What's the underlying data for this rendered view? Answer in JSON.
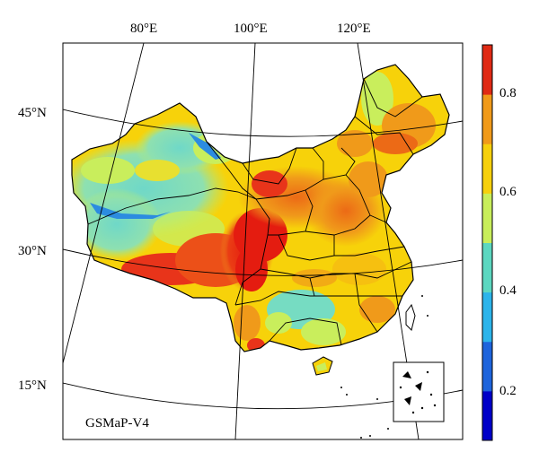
{
  "map": {
    "product_label": "GSMaP-V4",
    "longitude_labels": [
      "80°E",
      "100°E",
      "120°E"
    ],
    "latitude_labels": [
      "45°N",
      "30°N",
      "15°N"
    ]
  },
  "colorbar": {
    "tick_labels": [
      "0.8",
      "0.6",
      "0.4",
      "0.2"
    ],
    "colors": [
      "#0000c8",
      "#1e64dc",
      "#2cb4ea",
      "#5cd7c0",
      "#c8ee5a",
      "#f6d00c",
      "#f09a1a",
      "#e02a14"
    ]
  }
}
